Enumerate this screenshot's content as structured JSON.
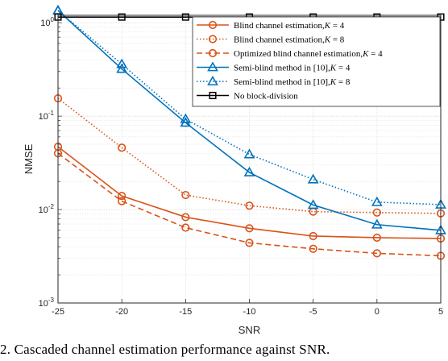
{
  "caption": "2.  Cascaded channel estimation performance against SNR.",
  "chart_data": {
    "type": "line",
    "title": "",
    "xlabel": "SNR",
    "ylabel": "NMSE",
    "yscale": "log",
    "xlim": [
      -25,
      5
    ],
    "ylim": [
      0.001,
      1.2
    ],
    "grid": true,
    "legend_position": "top-right",
    "x": [
      -25,
      -20,
      -15,
      -10,
      -5,
      0,
      5
    ],
    "xticks": [
      "-25",
      "-20",
      "-15",
      "-10",
      "-5",
      "0",
      "5"
    ],
    "yticks": [
      {
        "value": 0.001,
        "base": "10",
        "exp": "-3"
      },
      {
        "value": 0.01,
        "base": "10",
        "exp": "-2"
      },
      {
        "value": 0.1,
        "base": "10",
        "exp": "-1"
      },
      {
        "value": 1,
        "base": "10",
        "exp": "0"
      }
    ],
    "colors": {
      "orange": "#D95319",
      "blue": "#0072BD",
      "black": "#000000"
    },
    "series": [
      {
        "name": "Blind channel estimation,",
        "k": "4",
        "color": "#D95319",
        "dash": "solid",
        "marker": "circle",
        "values": [
          0.047,
          0.014,
          0.0083,
          0.0063,
          0.0052,
          0.005,
          0.0049
        ]
      },
      {
        "name": "Blind channel estimation,",
        "k": "8",
        "color": "#D95319",
        "dash": "dotted",
        "marker": "circle",
        "values": [
          0.155,
          0.046,
          0.0143,
          0.011,
          0.0095,
          0.0093,
          0.0091
        ]
      },
      {
        "name": "Optimized blind channel estimation,",
        "k": "4",
        "color": "#D95319",
        "dash": "dashed",
        "marker": "circle",
        "values": [
          0.04,
          0.0123,
          0.0064,
          0.0044,
          0.0038,
          0.0034,
          0.0032
        ]
      },
      {
        "name": "Semi-blind method in [10],",
        "k": "4",
        "color": "#0072BD",
        "dash": "solid",
        "marker": "triangle",
        "values": [
          1.35,
          0.32,
          0.085,
          0.025,
          0.0112,
          0.0069,
          0.006
        ]
      },
      {
        "name": "Semi-blind method in [10],",
        "k": "8",
        "color": "#0072BD",
        "dash": "dotted",
        "marker": "triangle",
        "values": [
          1.35,
          0.36,
          0.093,
          0.039,
          0.021,
          0.012,
          0.0113
        ]
      },
      {
        "name": "No block-division",
        "k": "",
        "color": "#000000",
        "dash": "solid",
        "marker": "square",
        "values": [
          1.15,
          1.15,
          1.15,
          1.15,
          1.15,
          1.15,
          1.15
        ]
      }
    ]
  }
}
